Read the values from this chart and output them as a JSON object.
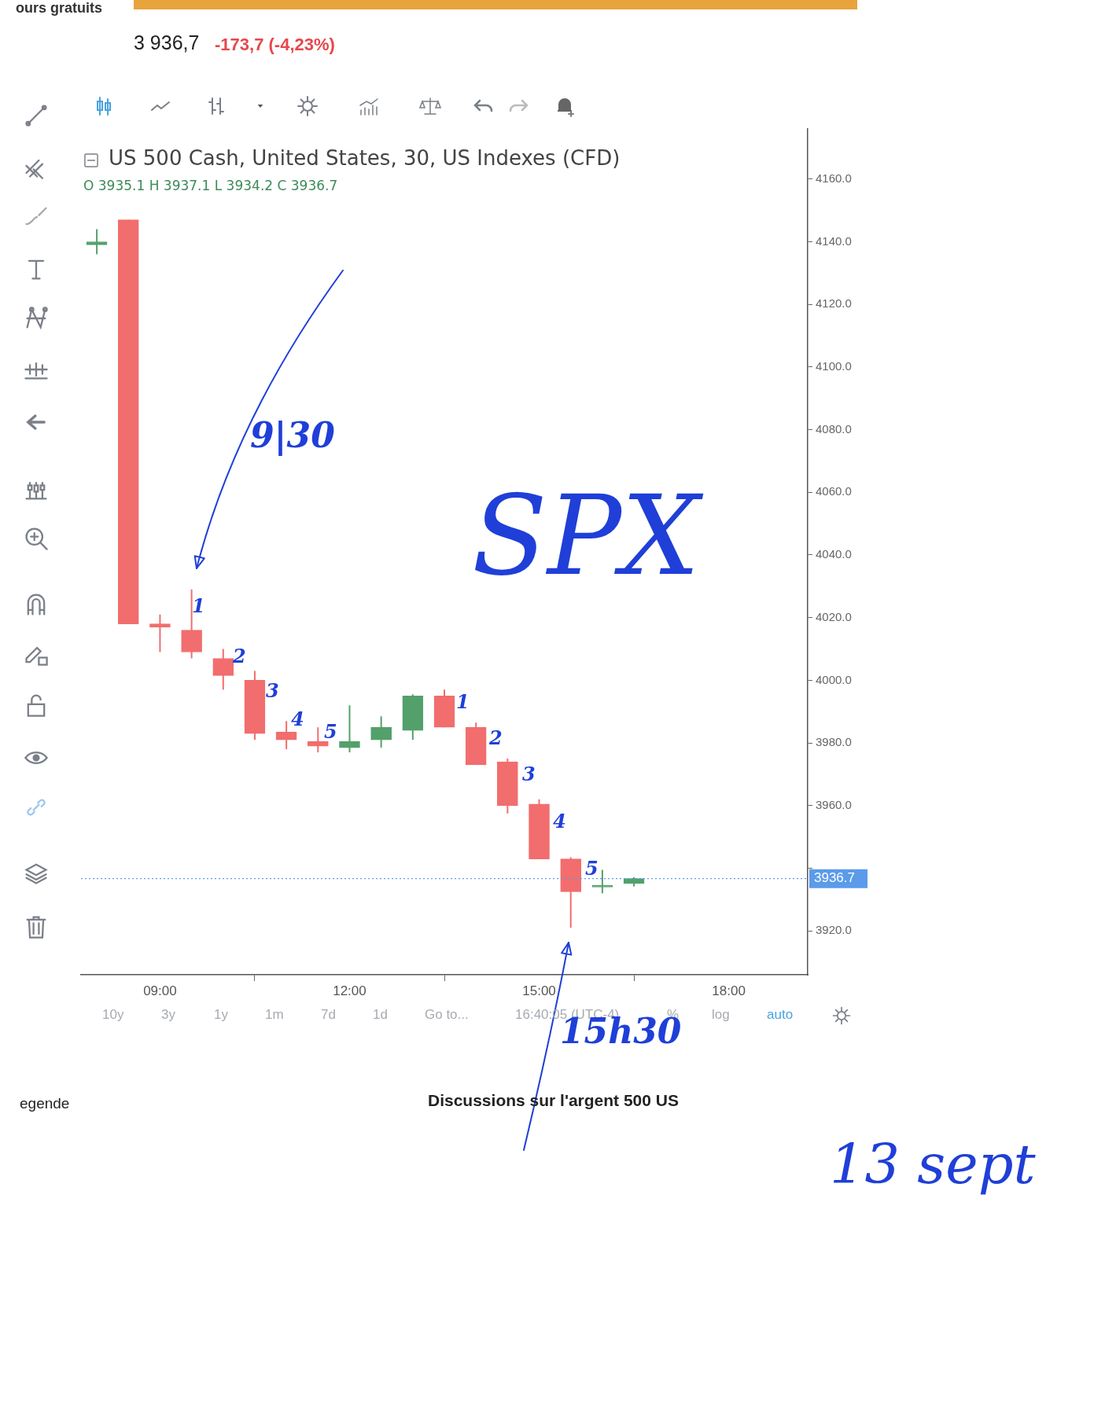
{
  "chart_data": {
    "type": "candlestick",
    "title": "US 500 Cash, United States, 30, US Indexes (CFD)",
    "subtitle": "O 3935.1 H 3937.1 L 3934.2 C 3936.7",
    "x": [
      8,
      8.5,
      9,
      9.5,
      10,
      10.5,
      11,
      11.5,
      12,
      12.5,
      13,
      13.5,
      14,
      14.5,
      15,
      15.5,
      16,
      16.5
    ],
    "ohlc": [
      [
        4139,
        4144,
        4136,
        4140
      ],
      [
        4147,
        4147,
        4018,
        4018
      ],
      [
        4018,
        4021,
        4009,
        4017
      ],
      [
        4016,
        4029,
        4007,
        4009
      ],
      [
        4007,
        4010,
        3997,
        4001.5
      ],
      [
        4000,
        4003,
        3981,
        3983
      ],
      [
        3983.5,
        3987,
        3978,
        3981
      ],
      [
        3980.5,
        3985,
        3977,
        3979
      ],
      [
        3978.5,
        3992,
        3977,
        3980.5
      ],
      [
        3981,
        3988.5,
        3978.5,
        3985
      ],
      [
        3984,
        3995.5,
        3981,
        3995
      ],
      [
        3995,
        3997,
        3985,
        3985
      ],
      [
        3985,
        3986.5,
        3973,
        3973
      ],
      [
        3974,
        3975,
        3957.5,
        3960
      ],
      [
        3960.5,
        3962,
        3943,
        3943
      ],
      [
        3943,
        3943.5,
        3921,
        3932.5
      ],
      [
        3934,
        3939.5,
        3932,
        3934.5
      ],
      [
        3935.1,
        3937.1,
        3934.2,
        3936.7
      ]
    ],
    "colors": [
      "#53a06b",
      "#f26d6d",
      "#f26d6d",
      "#f26d6d",
      "#f26d6d",
      "#f26d6d",
      "#f26d6d",
      "#f26d6d",
      "#53a06b",
      "#53a06b",
      "#53a06b",
      "#f26d6d",
      "#f26d6d",
      "#f26d6d",
      "#f26d6d",
      "#f26d6d",
      "#53a06b",
      "#53a06b"
    ],
    "xlim": [
      7.75,
      19.25
    ],
    "xticks": [
      {
        "value": 9,
        "label": "09:00"
      },
      {
        "value": 12,
        "label": "12:00"
      },
      {
        "value": 15,
        "label": "15:00"
      },
      {
        "value": 18,
        "label": "18:00"
      }
    ],
    "ylim": [
      3906,
      4176
    ],
    "yticks": [
      {
        "value": 3920,
        "label": "3920.0"
      },
      {
        "value": 3940,
        "label": null
      },
      {
        "value": 3960,
        "label": "3960.0"
      },
      {
        "value": 3980,
        "label": "3980.0"
      },
      {
        "value": 4000,
        "label": "4000.0"
      },
      {
        "value": 4020,
        "label": "4020.0"
      },
      {
        "value": 4040,
        "label": "4040.0"
      },
      {
        "value": 4060,
        "label": "4060.0"
      },
      {
        "value": 4080,
        "label": "4080.0"
      },
      {
        "value": 4100,
        "label": "4100.0"
      },
      {
        "value": 4120,
        "label": "4120.0"
      },
      {
        "value": 4140,
        "label": "4140.0"
      },
      {
        "value": 4160,
        "label": "4160.0"
      }
    ],
    "ref_lines": [
      {
        "axis": "y",
        "value": 3936.7,
        "label": "3936.7",
        "color": "#5b9bea",
        "line_style": "dotted"
      }
    ],
    "annotations": [
      "ours gratuits",
      "3 936,7",
      "-173,7 (-4,23%)",
      "10y",
      "3y",
      "1y",
      "1m",
      "7d",
      "1d",
      "Go to...",
      "16:40:05 (UTC-4)",
      "%",
      "log",
      "auto",
      "egende",
      "Discussions sur l'argent 500 US",
      "SPX",
      "13 sept",
      "9|30",
      "15h30",
      "1",
      "2",
      "3",
      "4",
      "5",
      "1",
      "2",
      "3",
      "4",
      "5"
    ]
  }
}
